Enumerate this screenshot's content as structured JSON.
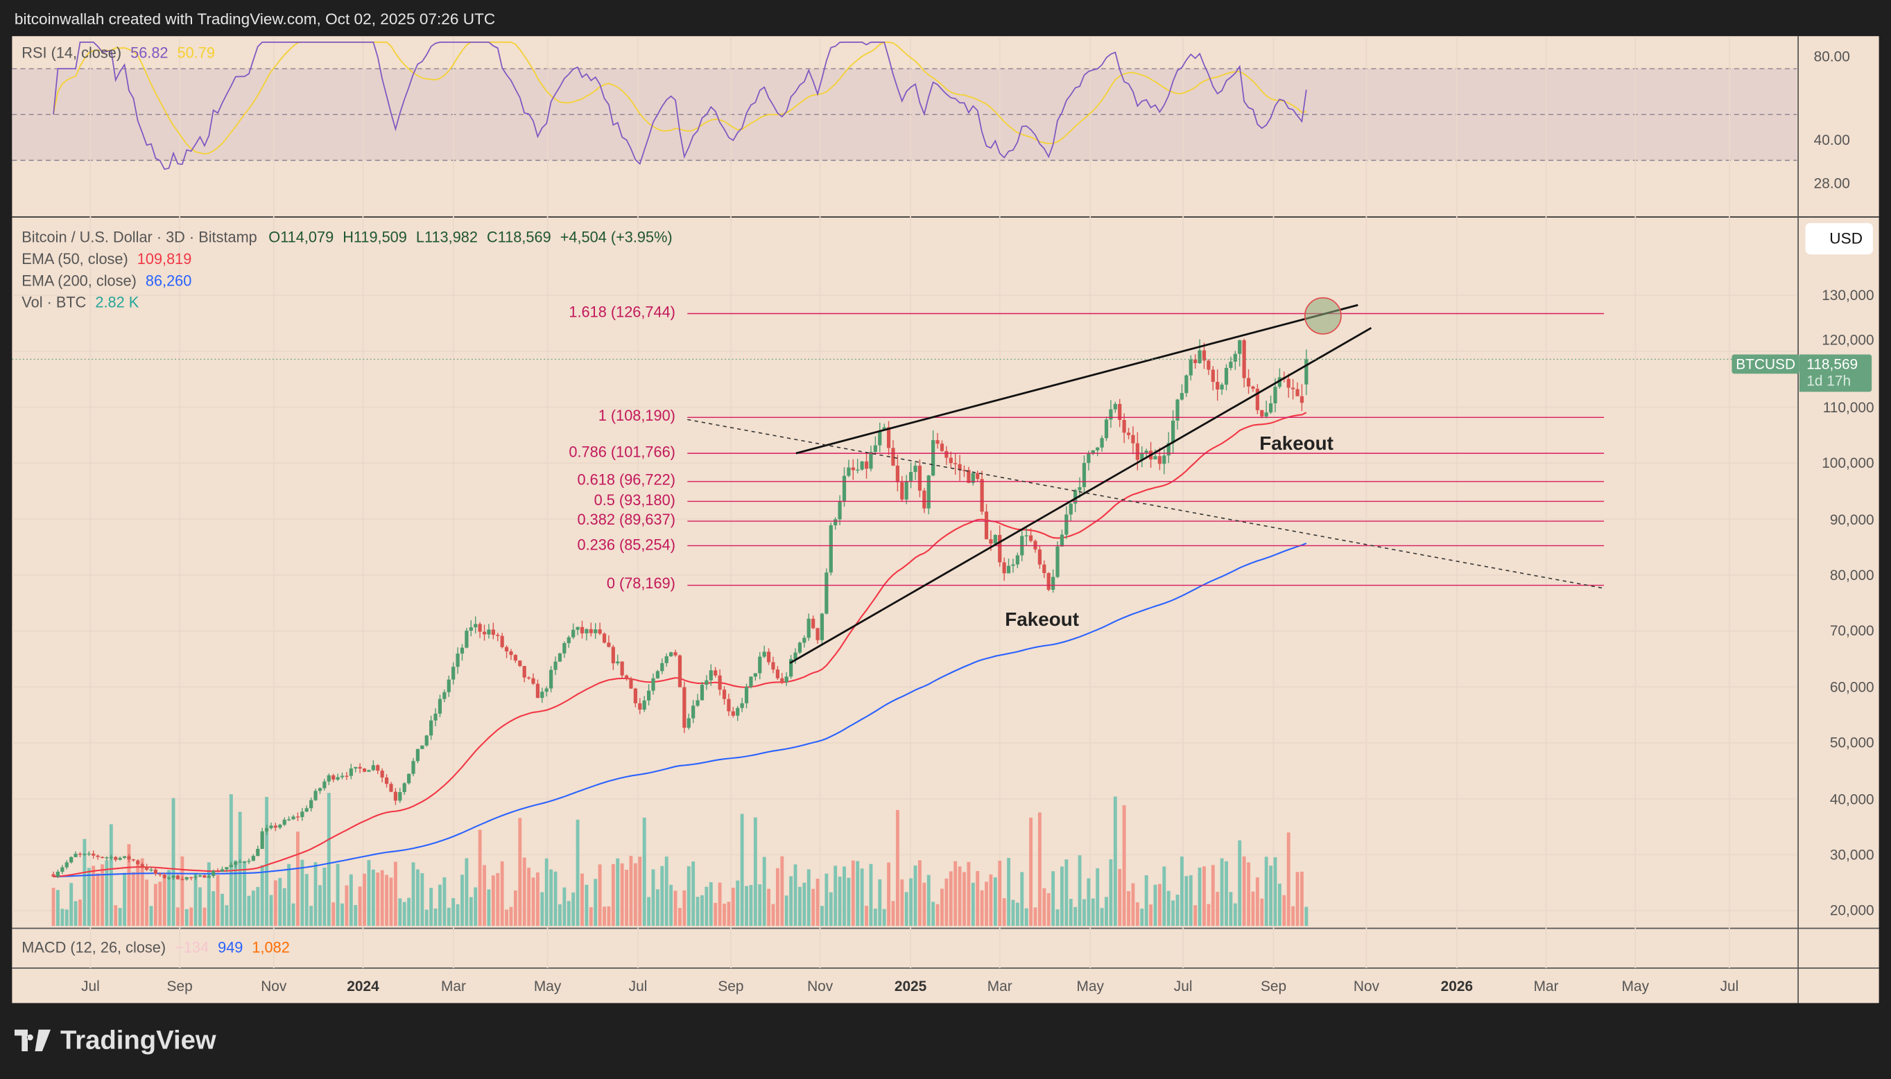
{
  "header": {
    "attribution": "bitcoinwallah created with TradingView.com, Oct 02, 2025 07:26 UTC"
  },
  "rsi": {
    "label": "RSI (14, close)",
    "value": "56.82",
    "ma_value": "50.79",
    "axis": [
      "80.00",
      "40.00",
      "28.00"
    ],
    "colors": {
      "rsi": "#7e57c2",
      "ma": "#f5d130"
    }
  },
  "main": {
    "symbol_line": "Bitcoin / U.S. Dollar · 3D · Bitstamp",
    "open": "O114,079",
    "high": "H119,509",
    "low": "L113,982",
    "close": "C118,569",
    "change": "+4,504 (+3.95%)",
    "ema50": {
      "label": "EMA (50, close)",
      "value": "109,819",
      "color": "#f23645"
    },
    "ema200": {
      "label": "EMA (200, close)",
      "value": "86,260",
      "color": "#2962ff"
    },
    "vol": {
      "label": "Vol · BTC",
      "value": "2.82 K",
      "color": "#26a69a"
    },
    "currency": "USD",
    "price_tag": {
      "symbol": "BTCUSD",
      "price": "118,569",
      "countdown": "1d 17h",
      "color": "#66a37e"
    },
    "annotations": [
      "Fakeout",
      "Fakeout"
    ]
  },
  "fib": [
    {
      "label": "1.618 (126,744)",
      "price": 126744
    },
    {
      "label": "1 (108,190)",
      "price": 108190
    },
    {
      "label": "0.786 (101,766)",
      "price": 101766
    },
    {
      "label": "0.618 (96,722)",
      "price": 96722
    },
    {
      "label": "0.5 (93,180)",
      "price": 93180
    },
    {
      "label": "0.382 (89,637)",
      "price": 89637
    },
    {
      "label": "0.236 (85,254)",
      "price": 85254
    },
    {
      "label": "0 (78,169)",
      "price": 78169
    }
  ],
  "price_axis": [
    "130,000",
    "120,000",
    "110,000",
    "100,000",
    "90,000",
    "80,000",
    "70,000",
    "60,000",
    "50,000",
    "40,000",
    "30,000",
    "20,000"
  ],
  "macd": {
    "label": "MACD (12, 26, close)",
    "hist": "−134",
    "macd": "949",
    "signal": "1,082"
  },
  "time_axis": [
    {
      "label": "Jul",
      "bold": false
    },
    {
      "label": "Sep",
      "bold": false
    },
    {
      "label": "Nov",
      "bold": false
    },
    {
      "label": "2024",
      "bold": true
    },
    {
      "label": "Mar",
      "bold": false
    },
    {
      "label": "May",
      "bold": false
    },
    {
      "label": "Jul",
      "bold": false
    },
    {
      "label": "Sep",
      "bold": false
    },
    {
      "label": "Nov",
      "bold": false
    },
    {
      "label": "2025",
      "bold": true
    },
    {
      "label": "Mar",
      "bold": false
    },
    {
      "label": "May",
      "bold": false
    },
    {
      "label": "Jul",
      "bold": false
    },
    {
      "label": "Sep",
      "bold": false
    },
    {
      "label": "Nov",
      "bold": false
    },
    {
      "label": "2026",
      "bold": true
    },
    {
      "label": "Mar",
      "bold": false
    },
    {
      "label": "May",
      "bold": false
    },
    {
      "label": "Jul",
      "bold": false
    }
  ],
  "brand": "TradingView",
  "chart_data": {
    "type": "candlestick",
    "interval": "3D",
    "close_anchors": [
      [
        "2023-06-06",
        26500
      ],
      [
        "2023-06-21",
        30000
      ],
      [
        "2023-07-28",
        29300
      ],
      [
        "2023-08-17",
        26100
      ],
      [
        "2023-09-11",
        25800
      ],
      [
        "2023-10-20",
        29700
      ],
      [
        "2023-10-25",
        34000
      ],
      [
        "2023-11-20",
        37200
      ],
      [
        "2023-12-08",
        43800
      ],
      [
        "2024-01-10",
        46000
      ],
      [
        "2024-01-23",
        40000
      ],
      [
        "2024-02-14",
        52000
      ],
      [
        "2024-02-29",
        62000
      ],
      [
        "2024-03-14",
        71000
      ],
      [
        "2024-03-28",
        69800
      ],
      [
        "2024-04-13",
        64000
      ],
      [
        "2024-04-30",
        58000
      ],
      [
        "2024-05-20",
        70000
      ],
      [
        "2024-06-07",
        69500
      ],
      [
        "2024-06-28",
        61000
      ],
      [
        "2024-07-06",
        56000
      ],
      [
        "2024-07-29",
        68000
      ],
      [
        "2024-08-05",
        53500
      ],
      [
        "2024-08-24",
        64000
      ],
      [
        "2024-09-06",
        53500
      ],
      [
        "2024-09-27",
        66000
      ],
      [
        "2024-10-10",
        60500
      ],
      [
        "2024-10-29",
        72000
      ],
      [
        "2024-11-04",
        68500
      ],
      [
        "2024-11-12",
        88000
      ],
      [
        "2024-11-22",
        98000
      ],
      [
        "2024-12-05",
        99000
      ],
      [
        "2024-12-17",
        106000
      ],
      [
        "2024-12-30",
        93000
      ],
      [
        "2025-01-06",
        101000
      ],
      [
        "2025-01-13",
        91000
      ],
      [
        "2025-01-21",
        105000
      ],
      [
        "2025-02-01",
        100000
      ],
      [
        "2025-02-20",
        96500
      ],
      [
        "2025-02-26",
        84000
      ],
      [
        "2025-03-03",
        86000
      ],
      [
        "2025-03-10",
        80000
      ],
      [
        "2025-03-24",
        88000
      ],
      [
        "2025-04-08",
        77000
      ],
      [
        "2025-04-22",
        93000
      ],
      [
        "2025-05-09",
        103000
      ],
      [
        "2025-05-22",
        110000
      ],
      [
        "2025-06-05",
        101500
      ],
      [
        "2025-06-22",
        100500
      ],
      [
        "2025-07-03",
        109000
      ],
      [
        "2025-07-14",
        120000
      ],
      [
        "2025-07-25",
        118000
      ],
      [
        "2025-08-02",
        113000
      ],
      [
        "2025-08-14",
        123000
      ],
      [
        "2025-08-20",
        113500
      ],
      [
        "2025-09-01",
        108500
      ],
      [
        "2025-09-15",
        116000
      ],
      [
        "2025-09-25",
        109500
      ],
      [
        "2025-09-30",
        118569
      ]
    ],
    "last": {
      "open": 114079,
      "high": 119509,
      "low": 113982,
      "close": 118569
    },
    "ema50_last": 109819,
    "ema200_last": 86260,
    "ylim": [
      18000,
      135000
    ],
    "y_scale": "linear",
    "colors": {
      "up": "#4e9c6e",
      "down": "#d9534f",
      "vol_up": "#7fc4b3",
      "vol_down": "#f19a8d",
      "fib": "#d81b60"
    }
  }
}
